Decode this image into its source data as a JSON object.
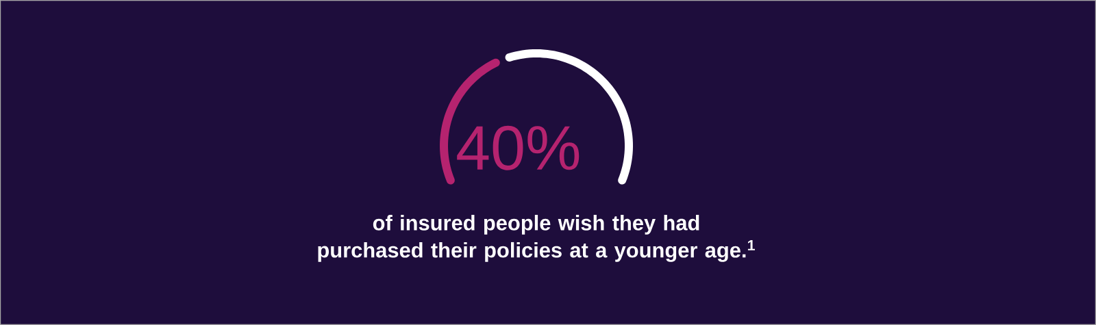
{
  "chart_data": {
    "type": "donut",
    "categories": [
      null,
      null
    ],
    "values": [
      40,
      60
    ],
    "colors": [
      "#b5236f",
      "#ffffff"
    ],
    "value_labels": [
      "40%",
      null
    ],
    "annotations": [
      "of insured people wish they had purchased their policies at a younger age.$^{1}$"
    ]
  }
}
